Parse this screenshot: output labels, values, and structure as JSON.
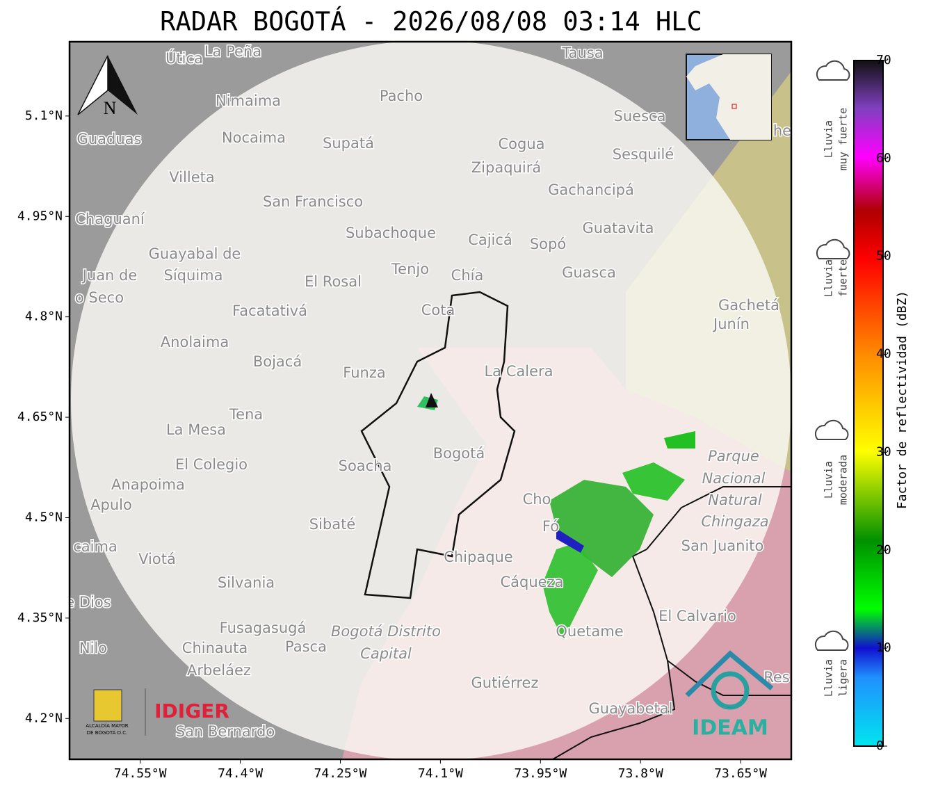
{
  "title": "RADAR BOGOTÁ - 2026/08/08 03:14 HLC",
  "map": {
    "xlim": [
      -74.656,
      -73.574
    ],
    "ylim": [
      4.139,
      5.211
    ],
    "xticks": [
      {
        "value": -74.55,
        "label": "74.55°W"
      },
      {
        "value": -74.4,
        "label": "74.4°W"
      },
      {
        "value": -74.25,
        "label": "74.25°W"
      },
      {
        "value": -74.1,
        "label": "74.1°W"
      },
      {
        "value": -73.95,
        "label": "73.95°W"
      },
      {
        "value": -73.8,
        "label": "73.8°W"
      },
      {
        "value": -73.65,
        "label": "73.65°W"
      }
    ],
    "yticks": [
      {
        "value": 5.1,
        "label": "5.1°N"
      },
      {
        "value": 4.95,
        "label": "4.95°N"
      },
      {
        "value": 4.8,
        "label": "4.8°N"
      },
      {
        "value": 4.65,
        "label": "4.65°N"
      },
      {
        "value": 4.5,
        "label": "4.5°N"
      },
      {
        "value": 4.35,
        "label": "4.35°N"
      },
      {
        "value": 4.2,
        "label": "4.2°N"
      }
    ],
    "grid": true,
    "places": [
      "Útica",
      "La Peña",
      "Tausa",
      "Pacho",
      "Nimaima",
      "Guaduas",
      "Nocaima",
      "Supatá",
      "Cogua",
      "Suesca",
      "Sesquilé",
      "Villeta",
      "Zipaquirá",
      "Gachancipá",
      "San Francisco",
      "Chaguaní",
      "Guatavita",
      "Subachoque",
      "Cajicá",
      "Sopó",
      "Guayabal de",
      "Síquima",
      "Juan de",
      "o Seco",
      "Tenjo",
      "Chía",
      "El Rosal",
      "Guasca",
      "Facatativá",
      "Cota",
      "Gachetá",
      "Junín",
      "Anolaima",
      "Bojacá",
      "Funza",
      "La Calera",
      "Tena",
      "La Mesa",
      "Bogotá",
      "Soacha",
      "El Colegio",
      "Parque",
      "Nacional",
      "Natural",
      "Chingaza",
      "Anapoima",
      "Apulo",
      "Sibaté",
      "Chipaque",
      "San Juanito",
      "caima",
      "Viotá",
      "Silvania",
      "Cáqueza",
      "e Dios",
      "El Calvario",
      "Fusagasugá",
      "Bogotá Distrito",
      "Capital",
      "Quetame",
      "Nilo",
      "Chinauta",
      "Pasca",
      "Arbeláez",
      "Gutiérrez",
      "Guayabetal",
      "San Bernardo",
      "Res",
      "he",
      "Cho",
      "Fó"
    ],
    "north": "N",
    "logo_left": [
      "ALCALDÍA MAYOR",
      "DE BOGOTÁ D.C."
    ],
    "logo_mid": "IDIGER",
    "logo_right": "IDEAM"
  },
  "colorbar": {
    "label": "Factor de reflectividad (dBZ)",
    "lim": [
      0,
      70
    ],
    "ticks": [
      0,
      10,
      20,
      30,
      40,
      50,
      60,
      70
    ],
    "rain_levels": [
      [
        "Lluvia",
        "muy fuerte"
      ],
      [
        "Lluvia",
        "fuerte"
      ],
      [
        "Lluvia",
        "moderada"
      ],
      [
        "Lluvia",
        "ligera"
      ]
    ]
  }
}
